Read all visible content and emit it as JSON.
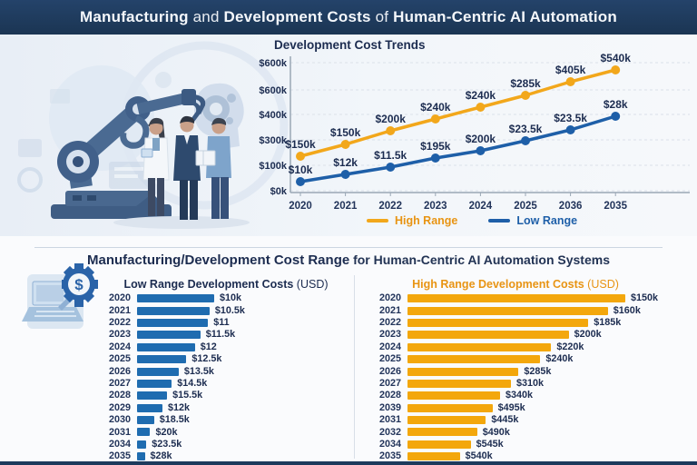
{
  "header": {
    "t1": "Manufacturing",
    "t2": " and ",
    "t3": "Development Costs",
    "t4": " of ",
    "t5": "Human-Centric AI Automation"
  },
  "section": {
    "t1": "Manufacturing/Development Cost Range",
    "t2": " for Human-Centric AI Automation Systems"
  },
  "colors": {
    "navy_text": "#1c2c50",
    "blue_bar": "#1f6cb0",
    "orange_bar": "#f3a70c",
    "blue_line": "#1e5fa8",
    "orange_line": "#f2a71b",
    "orange_text": "#e89413",
    "header_bg": "#1e3a5c"
  },
  "chart_data": [
    {
      "type": "line",
      "title": "Development Cost Trends",
      "x": [
        "2020",
        "2021",
        "2022",
        "2023",
        "2024",
        "2025",
        "2036",
        "2035"
      ],
      "y_axis_ticks": [
        "$600k",
        "$600k",
        "$400k",
        "$300k",
        "$100k",
        "$0k"
      ],
      "grid": true,
      "legend_position": "bottom",
      "series": [
        {
          "name": "High Range",
          "color": "#f2a71b",
          "labels": [
            "$150k",
            "$150k",
            "$200k",
            "$240k",
            "$240k",
            "$285k",
            "$405k",
            "$540k"
          ],
          "values_k": [
            150,
            150,
            200,
            240,
            240,
            285,
            405,
            540
          ]
        },
        {
          "name": "Low Range",
          "color": "#1e5fa8",
          "labels": [
            "$10k",
            "$12k",
            "$11.5k",
            "$195k",
            "$200k",
            "$23.5k",
            "$23.5k",
            "$28k"
          ],
          "values_k": [
            10,
            12,
            11.5,
            195,
            200,
            23.5,
            23.5,
            28
          ]
        }
      ]
    },
    {
      "type": "bar",
      "title": "Low Range Development Costs",
      "title_suffix": " (USD)",
      "color": "#1f6cb0",
      "categories": [
        "2020",
        "2021",
        "2022",
        "2023",
        "2024",
        "2025",
        "2026",
        "2027",
        "2028",
        "2029",
        "2030",
        "2031",
        "2034",
        "2035"
      ],
      "value_labels": [
        "$10k",
        "$10.5k",
        "$11",
        "$11.5k",
        "$12",
        "$12.5k",
        "$13.5k",
        "$14.5k",
        "$15.5k",
        "$12k",
        "$18.5k",
        "$20k",
        "$23.5k",
        "$28k"
      ],
      "values_k": [
        10,
        10.5,
        11,
        11.5,
        12,
        12.5,
        13.5,
        14.5,
        15.5,
        12,
        18.5,
        20,
        23.5,
        28
      ],
      "bar_scale": [
        1.0,
        0.94,
        0.92,
        0.82,
        0.75,
        0.64,
        0.54,
        0.45,
        0.39,
        0.33,
        0.22,
        0.17,
        0.12,
        0.1
      ]
    },
    {
      "type": "bar",
      "title": "High Range Development Costs",
      "title_suffix": " (USD)",
      "color": "#f3a70c",
      "categories": [
        "2020",
        "2021",
        "2022",
        "2023",
        "2024",
        "2025",
        "2026",
        "2027",
        "2028",
        "2039",
        "2031",
        "2032",
        "2034",
        "2035"
      ],
      "value_labels": [
        "$150k",
        "$160k",
        "$185k",
        "$200k",
        "$220k",
        "$240k",
        "$285k",
        "$310k",
        "$340k",
        "$495k",
        "$445k",
        "$490k",
        "$545k",
        "$540k"
      ],
      "values_k": [
        150,
        160,
        185,
        200,
        220,
        240,
        285,
        310,
        340,
        495,
        445,
        490,
        545,
        540
      ],
      "bar_scale": [
        1.0,
        0.92,
        0.83,
        0.74,
        0.66,
        0.61,
        0.51,
        0.475,
        0.425,
        0.39,
        0.36,
        0.32,
        0.29,
        0.24
      ]
    }
  ]
}
